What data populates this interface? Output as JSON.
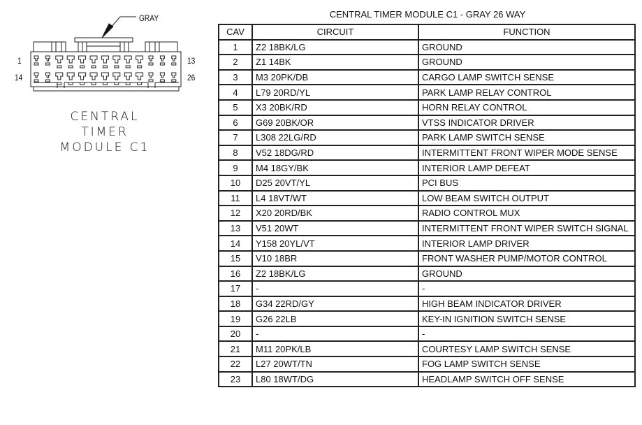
{
  "diagram": {
    "color_label": "GRAY",
    "pin_labels": [
      "1",
      "13",
      "14",
      "26"
    ],
    "caption": [
      "CENTRAL",
      "TIMER",
      "MODULE C1"
    ]
  },
  "table": {
    "title": "CENTRAL TIMER MODULE C1 - GRAY 26 WAY",
    "headers": [
      "CAV",
      "CIRCUIT",
      "FUNCTION"
    ],
    "rows": [
      [
        "1",
        "Z2 18BK/LG",
        "GROUND"
      ],
      [
        "2",
        "Z1 14BK",
        "GROUND"
      ],
      [
        "3",
        "M3 20PK/DB",
        "CARGO LAMP SWITCH SENSE"
      ],
      [
        "4",
        "L79 20RD/YL",
        "PARK LAMP RELAY CONTROL"
      ],
      [
        "5",
        "X3 20BK/RD",
        "HORN RELAY CONTROL"
      ],
      [
        "6",
        "G69 20BK/OR",
        "VTSS INDICATOR DRIVER"
      ],
      [
        "7",
        "L308 22LG/RD",
        "PARK LAMP SWITCH SENSE"
      ],
      [
        "8",
        "V52 18DG/RD",
        "INTERMITTENT FRONT WIPER MODE SENSE"
      ],
      [
        "9",
        "M4 18GY/BK",
        "INTERIOR LAMP DEFEAT"
      ],
      [
        "10",
        "D25 20VT/YL",
        "PCI BUS"
      ],
      [
        "11",
        "L4 18VT/WT",
        "LOW BEAM SWITCH OUTPUT"
      ],
      [
        "12",
        "X20 20RD/BK",
        "RADIO CONTROL MUX"
      ],
      [
        "13",
        "V51 20WT",
        "INTERMITTENT FRONT WIPER SWITCH SIGNAL"
      ],
      [
        "14",
        "Y158 20YL/VT",
        "INTERIOR LAMP DRIVER"
      ],
      [
        "15",
        "V10 18BR",
        "FRONT WASHER PUMP/MOTOR CONTROL"
      ],
      [
        "16",
        "Z2 18BK/LG",
        "GROUND"
      ],
      [
        "17",
        "-",
        "-"
      ],
      [
        "18",
        "G34 22RD/GY",
        "HIGH BEAM INDICATOR DRIVER"
      ],
      [
        "19",
        "G26 22LB",
        "KEY-IN IGNITION SWITCH SENSE"
      ],
      [
        "20",
        "-",
        "-"
      ],
      [
        "21",
        "M11 20PK/LB",
        "COURTESY LAMP SWITCH SENSE"
      ],
      [
        "22",
        "L27 20WT/TN",
        "FOG LAMP SWITCH SENSE"
      ],
      [
        "23",
        "L80 18WT/DG",
        "HEADLAMP SWITCH OFF SENSE"
      ]
    ]
  }
}
